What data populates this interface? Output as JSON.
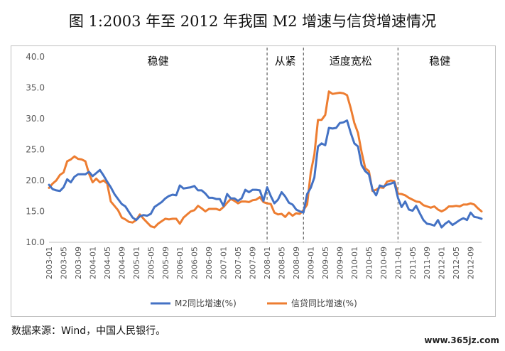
{
  "title": "图 1:2003 年至 2012 年我国 M2 增速与信贷增速情况",
  "source_note": "数据来源：Wind，中国人民银行。",
  "watermark": "www.365jz.com",
  "chart_data": {
    "type": "line",
    "ylim": [
      10,
      40
    ],
    "yticks": [
      "10.0",
      "15.0",
      "20.0",
      "25.0",
      "30.0",
      "35.0",
      "40.0"
    ],
    "xticks": [
      "2003-01",
      "2003-05",
      "2003-09",
      "2004-01",
      "2004-05",
      "2004-09",
      "2005-01",
      "2005-05",
      "2005-09",
      "2006-01",
      "2006-05",
      "2006-09",
      "2007-01",
      "2007-05",
      "2007-09",
      "2008-01",
      "2008-05",
      "2008-09",
      "2009-01",
      "2009-05",
      "2009-09",
      "2010-01",
      "2010-05",
      "2010-09",
      "2011-01",
      "2011-05",
      "2011-09",
      "2012-01",
      "2012-05",
      "2012-09"
    ],
    "grid": false,
    "legend_position": "bottom",
    "colors": {
      "m2": "#4472c4",
      "loan": "#ed7d31",
      "divider": "#404040"
    },
    "regions": [
      {
        "label": "稳健",
        "start": "2003-01",
        "end": "2008-01"
      },
      {
        "label": "从紧",
        "start": "2008-01",
        "end": "2008-11"
      },
      {
        "label": "适度宽松",
        "start": "2008-11",
        "end": "2011-01"
      },
      {
        "label": "稳健",
        "start": "2011-01",
        "end": "2012-12"
      }
    ],
    "series": [
      {
        "name": "M2同比增速(%)",
        "values": [
          19.3,
          18.6,
          18.4,
          18.3,
          18.9,
          20.2,
          19.7,
          20.6,
          21.0,
          21.0,
          21.0,
          21.4,
          20.7,
          21.2,
          21.7,
          20.8,
          19.8,
          18.9,
          17.8,
          17.0,
          16.2,
          15.8,
          14.9,
          14.0,
          13.6,
          14.2,
          14.4,
          14.3,
          14.6,
          15.7,
          16.1,
          16.5,
          17.1,
          17.5,
          17.7,
          17.6,
          19.2,
          18.7,
          18.8,
          18.9,
          19.1,
          18.4,
          18.4,
          17.9,
          17.2,
          17.2,
          17.0,
          17.0,
          15.9,
          17.8,
          17.1,
          17.1,
          16.7,
          17.1,
          18.5,
          18.1,
          18.5,
          18.5,
          18.4,
          16.7,
          18.9,
          17.5,
          16.3,
          16.9,
          18.1,
          17.4,
          16.4,
          16.1,
          15.3,
          15.0,
          14.8,
          17.8,
          18.8,
          20.5,
          25.5,
          26.0,
          25.7,
          28.5,
          28.4,
          28.5,
          29.3,
          29.4,
          29.7,
          27.7,
          26.0,
          25.5,
          22.5,
          21.5,
          21.0,
          18.5,
          17.6,
          19.2,
          19.0,
          19.3,
          19.5,
          19.7,
          17.2,
          15.7,
          16.6,
          15.3,
          15.1,
          15.9,
          14.7,
          13.6,
          13.0,
          12.9,
          12.7,
          13.6,
          12.4,
          13.0,
          13.4,
          12.8,
          13.2,
          13.6,
          13.9,
          13.6,
          14.8,
          14.1,
          14.0,
          13.8
        ],
        "color": "#4472c4"
      },
      {
        "name": "信贷同比增速(%)",
        "values": [
          18.8,
          19.5,
          20.0,
          20.9,
          21.3,
          23.1,
          23.4,
          23.9,
          23.5,
          23.4,
          23.1,
          21.1,
          19.7,
          20.3,
          19.7,
          20.0,
          19.5,
          16.6,
          15.9,
          15.2,
          14.0,
          13.7,
          13.3,
          13.2,
          13.6,
          14.5,
          13.8,
          13.2,
          12.6,
          12.4,
          13.0,
          13.4,
          13.8,
          13.7,
          13.8,
          13.8,
          13.0,
          14.0,
          14.5,
          15.0,
          15.2,
          15.9,
          15.5,
          15.0,
          15.4,
          15.4,
          15.4,
          15.2,
          15.7,
          16.4,
          17.0,
          16.7,
          16.3,
          16.6,
          16.6,
          16.5,
          16.8,
          16.9,
          17.3,
          16.5,
          16.3,
          16.2,
          14.8,
          14.5,
          14.6,
          14.1,
          14.8,
          14.3,
          14.7,
          14.6,
          15.2,
          16.1,
          21.3,
          24.2,
          29.8,
          29.8,
          30.6,
          34.4,
          34.0,
          34.1,
          34.2,
          34.1,
          33.8,
          31.7,
          29.3,
          27.7,
          24.6,
          22.0,
          21.5,
          18.3,
          18.5,
          18.9,
          18.8,
          19.8,
          20.0,
          19.9,
          17.9,
          17.8,
          17.6,
          17.2,
          16.9,
          16.6,
          16.5,
          16.0,
          15.8,
          15.6,
          15.8,
          15.3,
          15.0,
          15.3,
          15.8,
          15.8,
          15.9,
          15.8,
          16.1,
          16.1,
          16.3,
          16.1,
          15.5,
          15.0
        ],
        "color": "#ed7d31"
      }
    ]
  }
}
